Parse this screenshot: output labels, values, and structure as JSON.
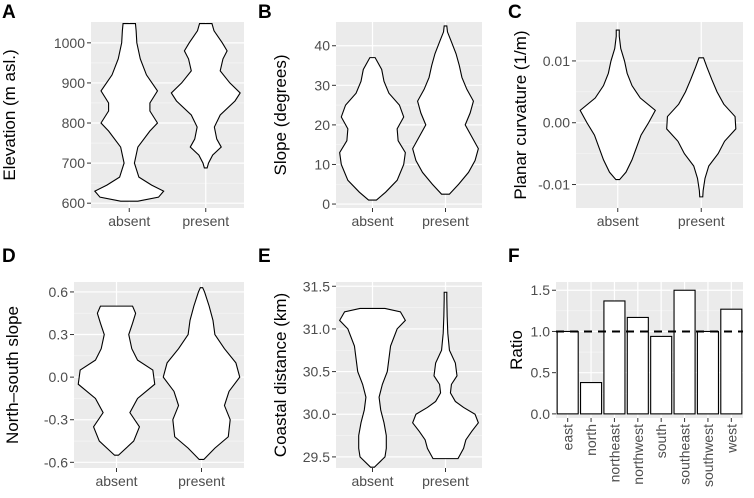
{
  "colors": {
    "panel_bg": "#ebebeb",
    "grid": "#ffffff",
    "fill": "#ffffff",
    "stroke": "#000000",
    "tick_text": "#4d4d4d"
  },
  "chart_data": [
    {
      "id": "A",
      "type": "violin",
      "letter": "A",
      "ylabel": "Elevation (m asl.)",
      "ylim": [
        588,
        1052
      ],
      "yticks": [
        600,
        700,
        800,
        900,
        1000
      ],
      "yticklabels": [
        "600",
        "700",
        "800",
        "900",
        "1000"
      ],
      "categories": [
        "absent",
        "present"
      ],
      "violins": [
        {
          "name": "absent",
          "profile": [
            [
              605,
              0.25
            ],
            [
              615,
              0.85
            ],
            [
              630,
              1.0
            ],
            [
              645,
              0.65
            ],
            [
              665,
              0.28
            ],
            [
              700,
              0.15
            ],
            [
              740,
              0.25
            ],
            [
              780,
              0.6
            ],
            [
              800,
              0.82
            ],
            [
              830,
              0.6
            ],
            [
              850,
              0.6
            ],
            [
              880,
              0.82
            ],
            [
              920,
              0.5
            ],
            [
              960,
              0.32
            ],
            [
              1000,
              0.22
            ],
            [
              1030,
              0.2
            ],
            [
              1048,
              0.18
            ]
          ]
        },
        {
          "name": "present",
          "profile": [
            [
              688,
              0.04
            ],
            [
              700,
              0.08
            ],
            [
              720,
              0.2
            ],
            [
              740,
              0.45
            ],
            [
              760,
              0.32
            ],
            [
              790,
              0.25
            ],
            [
              820,
              0.42
            ],
            [
              855,
              0.85
            ],
            [
              875,
              1.0
            ],
            [
              900,
              0.7
            ],
            [
              930,
              0.42
            ],
            [
              960,
              0.5
            ],
            [
              980,
              0.62
            ],
            [
              1000,
              0.48
            ],
            [
              1030,
              0.24
            ],
            [
              1048,
              0.18
            ]
          ]
        }
      ]
    },
    {
      "id": "B",
      "type": "violin",
      "letter": "B",
      "ylabel": "Slope (degrees)",
      "ylim": [
        -1,
        46
      ],
      "yticks": [
        0,
        10,
        20,
        30,
        40
      ],
      "yticklabels": [
        "0",
        "10",
        "20",
        "30",
        "40"
      ],
      "categories": [
        "absent",
        "present"
      ],
      "violins": [
        {
          "name": "absent",
          "profile": [
            [
              1,
              0.12
            ],
            [
              3,
              0.4
            ],
            [
              6,
              0.75
            ],
            [
              10,
              0.95
            ],
            [
              13,
              1.0
            ],
            [
              16,
              0.78
            ],
            [
              19,
              0.75
            ],
            [
              22,
              0.95
            ],
            [
              25,
              0.82
            ],
            [
              28,
              0.5
            ],
            [
              31,
              0.35
            ],
            [
              34,
              0.28
            ],
            [
              37,
              0.08
            ]
          ]
        },
        {
          "name": "present",
          "profile": [
            [
              2.5,
              0.12
            ],
            [
              5,
              0.4
            ],
            [
              8,
              0.7
            ],
            [
              11,
              0.9
            ],
            [
              14,
              1.0
            ],
            [
              17,
              0.8
            ],
            [
              20,
              0.6
            ],
            [
              23,
              0.75
            ],
            [
              26,
              0.85
            ],
            [
              29,
              0.65
            ],
            [
              32,
              0.5
            ],
            [
              35,
              0.42
            ],
            [
              38,
              0.32
            ],
            [
              41,
              0.18
            ],
            [
              43.5,
              0.06
            ],
            [
              45,
              0.04
            ]
          ]
        }
      ]
    },
    {
      "id": "C",
      "type": "violin",
      "letter": "C",
      "ylabel": "Planar curvature (1/m)",
      "ylim": [
        -0.0138,
        0.0163
      ],
      "yticks": [
        -0.01,
        0,
        0.01
      ],
      "yticklabels": [
        "-0.01",
        "0.00",
        "0.01"
      ],
      "categories": [
        "absent",
        "present"
      ],
      "violins": [
        {
          "name": "absent",
          "profile": [
            [
              -0.0092,
              0.05
            ],
            [
              -0.008,
              0.22
            ],
            [
              -0.006,
              0.38
            ],
            [
              -0.004,
              0.5
            ],
            [
              -0.002,
              0.62
            ],
            [
              0.0,
              0.82
            ],
            [
              0.002,
              1.0
            ],
            [
              0.004,
              0.6
            ],
            [
              0.006,
              0.38
            ],
            [
              0.008,
              0.25
            ],
            [
              0.01,
              0.18
            ],
            [
              0.012,
              0.08
            ],
            [
              0.014,
              0.04
            ],
            [
              0.015,
              0.04
            ]
          ]
        },
        {
          "name": "present",
          "profile": [
            [
              -0.012,
              0.04
            ],
            [
              -0.011,
              0.05
            ],
            [
              -0.009,
              0.1
            ],
            [
              -0.007,
              0.2
            ],
            [
              -0.005,
              0.45
            ],
            [
              -0.003,
              0.62
            ],
            [
              -0.001,
              0.92
            ],
            [
              0.001,
              0.9
            ],
            [
              0.003,
              0.6
            ],
            [
              0.005,
              0.42
            ],
            [
              0.007,
              0.28
            ],
            [
              0.009,
              0.15
            ],
            [
              0.0105,
              0.06
            ]
          ]
        }
      ]
    },
    {
      "id": "D",
      "type": "violin",
      "letter": "D",
      "ylabel": "North–south slope",
      "ylim": [
        -0.64,
        0.67
      ],
      "yticks": [
        -0.6,
        -0.3,
        0,
        0.3,
        0.6
      ],
      "yticklabels": [
        "-0.6",
        "-0.3",
        "0.0",
        "0.3",
        "0.6"
      ],
      "categories": [
        "absent",
        "present"
      ],
      "violins": [
        {
          "name": "absent",
          "profile": [
            [
              -0.55,
              0.05
            ],
            [
              -0.45,
              0.45
            ],
            [
              -0.35,
              0.6
            ],
            [
              -0.25,
              0.35
            ],
            [
              -0.15,
              0.55
            ],
            [
              -0.05,
              1.0
            ],
            [
              0.05,
              0.95
            ],
            [
              0.12,
              0.55
            ],
            [
              0.2,
              0.4
            ],
            [
              0.3,
              0.32
            ],
            [
              0.38,
              0.42
            ],
            [
              0.45,
              0.5
            ],
            [
              0.5,
              0.42
            ]
          ]
        },
        {
          "name": "present",
          "profile": [
            [
              -0.58,
              0.06
            ],
            [
              -0.5,
              0.35
            ],
            [
              -0.42,
              0.7
            ],
            [
              -0.3,
              0.75
            ],
            [
              -0.2,
              0.6
            ],
            [
              -0.1,
              0.72
            ],
            [
              0.0,
              1.0
            ],
            [
              0.1,
              0.9
            ],
            [
              0.2,
              0.6
            ],
            [
              0.3,
              0.35
            ],
            [
              0.4,
              0.3
            ],
            [
              0.5,
              0.2
            ],
            [
              0.6,
              0.08
            ],
            [
              0.63,
              0.03
            ]
          ]
        }
      ]
    },
    {
      "id": "E",
      "type": "violin",
      "letter": "E",
      "ylabel": "Coastal distance (km)",
      "ylim": [
        29.37,
        31.55
      ],
      "yticks": [
        29.5,
        30,
        30.5,
        31,
        31.5
      ],
      "yticklabels": [
        "29.5",
        "30.0",
        "30.5",
        "31.0",
        "31.5"
      ],
      "categories": [
        "absent",
        "present"
      ],
      "violins": [
        {
          "name": "absent",
          "profile": [
            [
              29.38,
              0.06
            ],
            [
              29.5,
              0.38
            ],
            [
              29.6,
              0.42
            ],
            [
              29.75,
              0.42
            ],
            [
              29.9,
              0.35
            ],
            [
              30.05,
              0.25
            ],
            [
              30.2,
              0.2
            ],
            [
              30.35,
              0.3
            ],
            [
              30.5,
              0.45
            ],
            [
              30.65,
              0.5
            ],
            [
              30.8,
              0.55
            ],
            [
              31.0,
              0.75
            ],
            [
              31.1,
              1.0
            ],
            [
              31.2,
              0.85
            ],
            [
              31.24,
              0.38
            ]
          ]
        },
        {
          "name": "present",
          "profile": [
            [
              29.48,
              0.38
            ],
            [
              29.6,
              0.55
            ],
            [
              29.7,
              0.62
            ],
            [
              29.8,
              0.8
            ],
            [
              29.9,
              1.0
            ],
            [
              30.0,
              0.9
            ],
            [
              30.08,
              0.55
            ],
            [
              30.15,
              0.3
            ],
            [
              30.25,
              0.15
            ],
            [
              30.35,
              0.18
            ],
            [
              30.45,
              0.35
            ],
            [
              30.6,
              0.3
            ],
            [
              30.75,
              0.12
            ],
            [
              30.95,
              0.07
            ],
            [
              31.15,
              0.05
            ],
            [
              31.35,
              0.04
            ],
            [
              31.43,
              0.04
            ]
          ]
        }
      ]
    },
    {
      "id": "F",
      "type": "bar",
      "letter": "F",
      "ylabel": "Ratio",
      "ylim": [
        -0.05,
        1.6
      ],
      "yticks": [
        0,
        0.5,
        1,
        1.5
      ],
      "yticklabels": [
        "0.0",
        "0.5",
        "1.0",
        "1.5"
      ],
      "categories": [
        "east",
        "north",
        "northeast",
        "northwest",
        "south",
        "southeast",
        "southwest",
        "west"
      ],
      "values": [
        1.0,
        0.38,
        1.37,
        1.17,
        0.94,
        1.5,
        1.0,
        1.27
      ],
      "reference_line": 1.0
    }
  ]
}
